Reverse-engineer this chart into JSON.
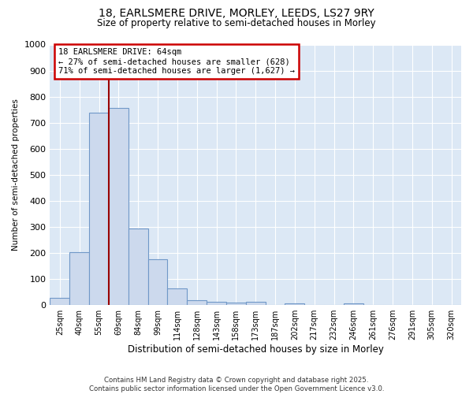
{
  "title1": "18, EARLSMERE DRIVE, MORLEY, LEEDS, LS27 9RY",
  "title2": "Size of property relative to semi-detached houses in Morley",
  "xlabel": "Distribution of semi-detached houses by size in Morley",
  "ylabel": "Number of semi-detached properties",
  "categories": [
    "25sqm",
    "40sqm",
    "55sqm",
    "69sqm",
    "84sqm",
    "99sqm",
    "114sqm",
    "128sqm",
    "143sqm",
    "158sqm",
    "173sqm",
    "187sqm",
    "202sqm",
    "217sqm",
    "232sqm",
    "246sqm",
    "261sqm",
    "276sqm",
    "291sqm",
    "305sqm",
    "320sqm"
  ],
  "values": [
    28,
    203,
    738,
    757,
    293,
    175,
    65,
    18,
    13,
    10,
    13,
    0,
    8,
    0,
    0,
    8,
    0,
    0,
    0,
    0,
    0
  ],
  "bar_color": "#ccd9ed",
  "bar_edge_color": "#7098c8",
  "highlight_line_color": "#990000",
  "annotation_text": "18 EARLSMERE DRIVE: 64sqm\n← 27% of semi-detached houses are smaller (628)\n71% of semi-detached houses are larger (1,627) →",
  "annotation_box_color": "#cc0000",
  "ylim": [
    0,
    1000
  ],
  "yticks": [
    0,
    100,
    200,
    300,
    400,
    500,
    600,
    700,
    800,
    900,
    1000
  ],
  "footer": "Contains HM Land Registry data © Crown copyright and database right 2025.\nContains public sector information licensed under the Open Government Licence v3.0.",
  "bg_color": "#ffffff",
  "plot_bg_color": "#dce8f5"
}
